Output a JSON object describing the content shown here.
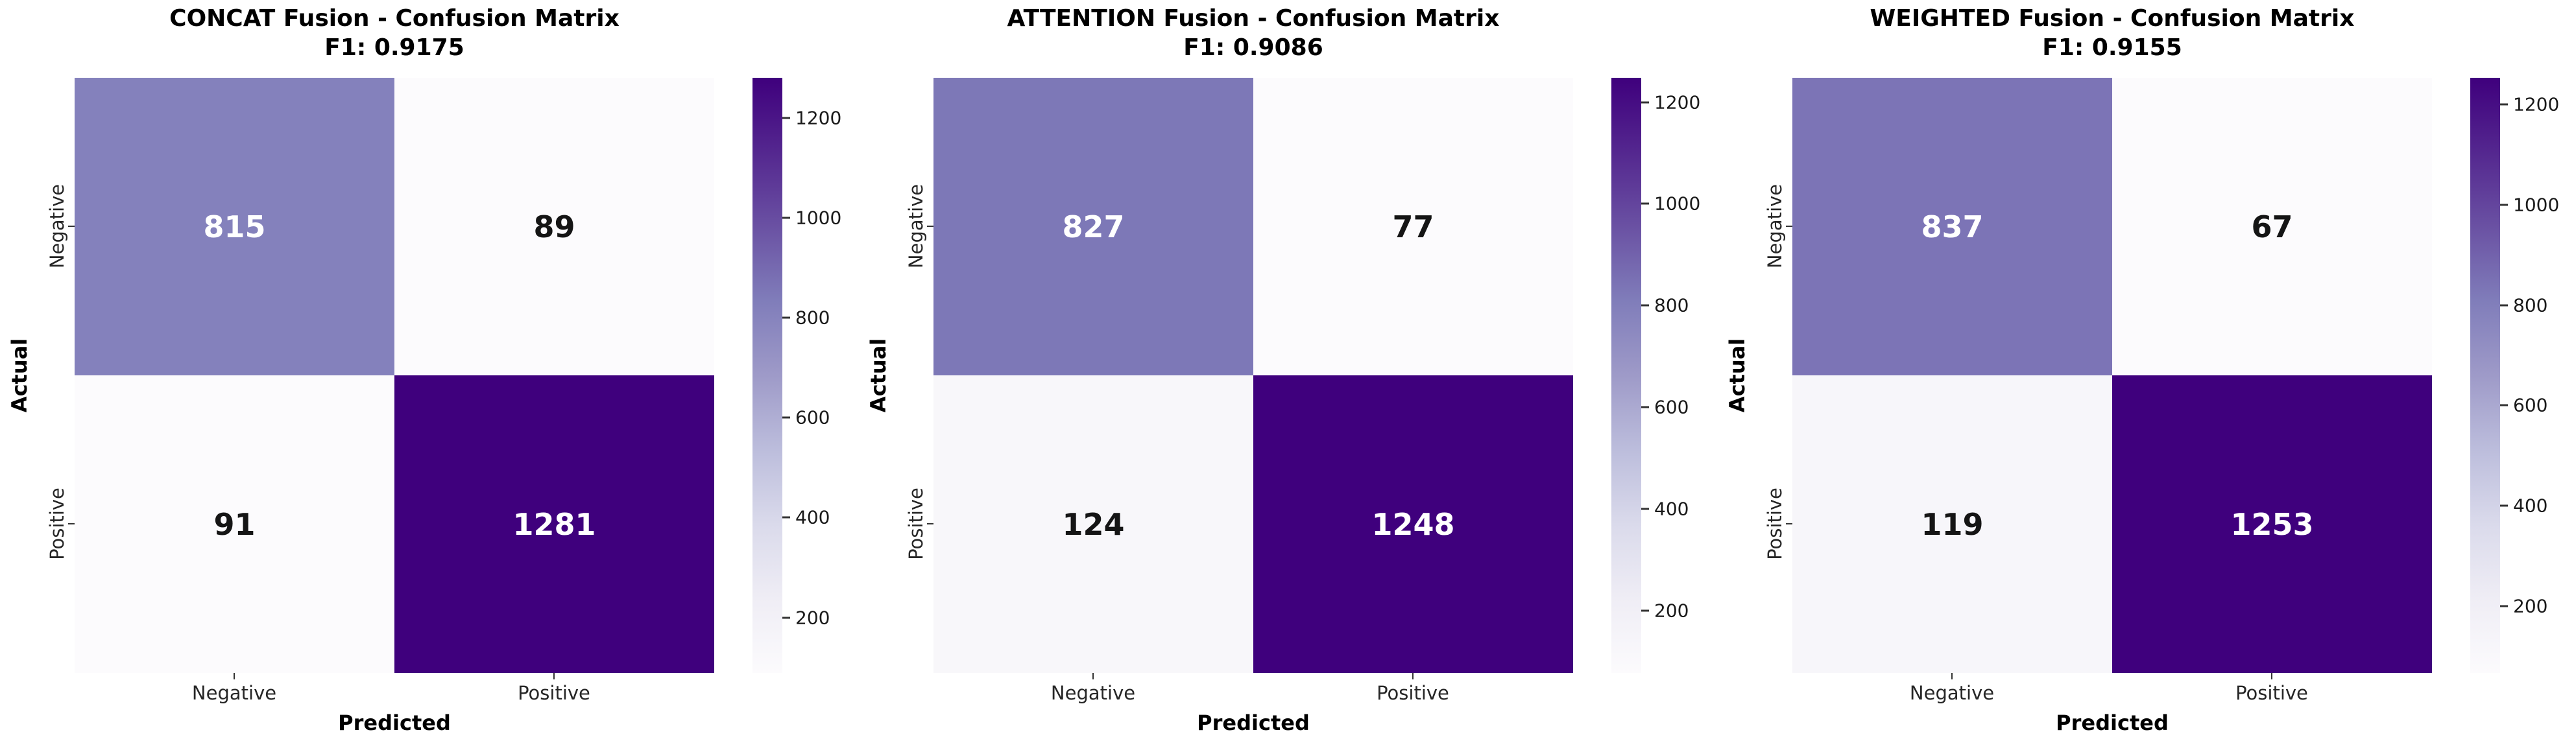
{
  "figure": {
    "background": "#ffffff",
    "colormap": "Purples",
    "colormap_stops": [
      [
        252,
        251,
        253
      ],
      [
        239,
        237,
        245
      ],
      [
        218,
        218,
        235
      ],
      [
        188,
        189,
        220
      ],
      [
        158,
        154,
        200
      ],
      [
        128,
        125,
        186
      ],
      [
        106,
        81,
        163
      ],
      [
        84,
        39,
        143
      ],
      [
        63,
        0,
        125
      ]
    ],
    "annot_light_text": "#ffffff",
    "annot_dark_text": "#151515"
  },
  "chart_data": [
    {
      "type": "heatmap",
      "title": "CONCAT Fusion - Confusion Matrix",
      "subtitle": "F1: 0.9175",
      "xlabel": "Predicted",
      "ylabel": "Actual",
      "x_ticklabels": [
        "Negative",
        "Positive"
      ],
      "y_ticklabels": [
        "Negative",
        "Positive"
      ],
      "matrix": [
        [
          815,
          89
        ],
        [
          91,
          1281
        ]
      ],
      "colorbar_ticks": [
        200,
        400,
        600,
        800,
        1000,
        1200
      ],
      "legend_position": "right-colorbar",
      "grid": false
    },
    {
      "type": "heatmap",
      "title": "ATTENTION Fusion - Confusion Matrix",
      "subtitle": "F1: 0.9086",
      "xlabel": "Predicted",
      "ylabel": "Actual",
      "x_ticklabels": [
        "Negative",
        "Positive"
      ],
      "y_ticklabels": [
        "Negative",
        "Positive"
      ],
      "matrix": [
        [
          827,
          77
        ],
        [
          124,
          1248
        ]
      ],
      "colorbar_ticks": [
        200,
        400,
        600,
        800,
        1000,
        1200
      ],
      "legend_position": "right-colorbar",
      "grid": false
    },
    {
      "type": "heatmap",
      "title": "WEIGHTED Fusion - Confusion Matrix",
      "subtitle": "F1: 0.9155",
      "xlabel": "Predicted",
      "ylabel": "Actual",
      "x_ticklabels": [
        "Negative",
        "Positive"
      ],
      "y_ticklabels": [
        "Negative",
        "Positive"
      ],
      "matrix": [
        [
          837,
          67
        ],
        [
          119,
          1253
        ]
      ],
      "colorbar_ticks": [
        200,
        400,
        600,
        800,
        1000,
        1200
      ],
      "legend_position": "right-colorbar",
      "grid": false
    }
  ]
}
